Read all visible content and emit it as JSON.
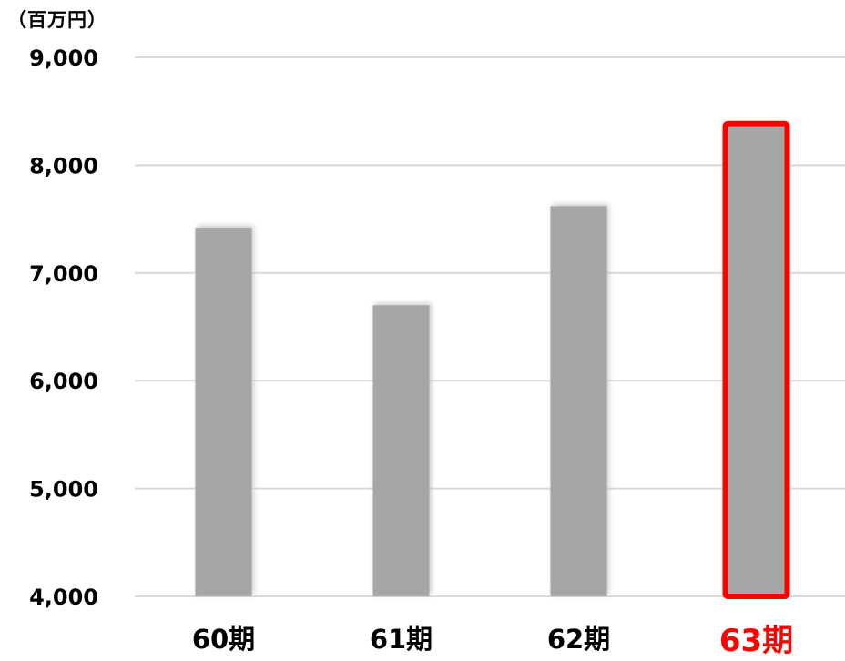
{
  "chart_data": {
    "type": "bar",
    "unit_label": "（百万円）",
    "categories": [
      "60期",
      "61期",
      "62期",
      "63期"
    ],
    "values": [
      7420,
      6700,
      7620,
      8360
    ],
    "ylim": [
      4000,
      9000
    ],
    "yticks": [
      "4,000",
      "5,000",
      "6,000",
      "7,000",
      "8,000",
      "9,000"
    ],
    "ytick_values": [
      4000,
      5000,
      6000,
      7000,
      8000,
      9000
    ],
    "grid": true,
    "highlight_index": 3,
    "colors": {
      "bar": "#a6a6a6",
      "bar_shadow": "#bdbdbd",
      "highlight_outline": "#ff0000",
      "highlight_label": "#ff0000",
      "grid": "#d9d9d9",
      "axis_label": "#000000"
    }
  }
}
